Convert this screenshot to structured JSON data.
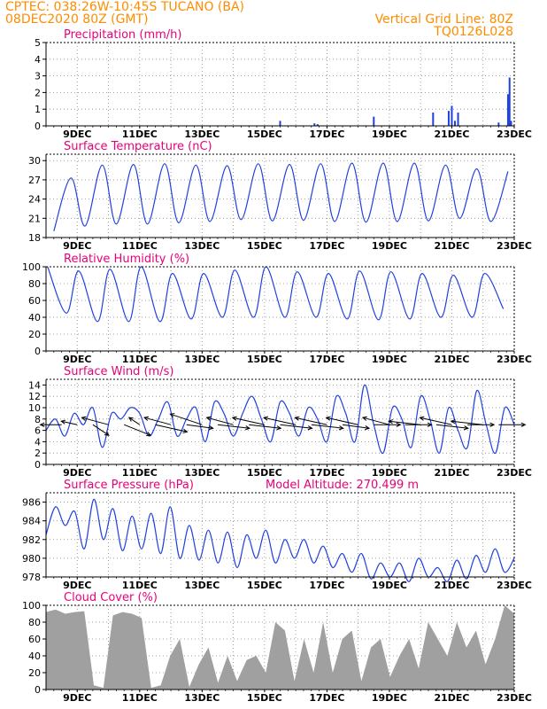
{
  "header": {
    "left_line1": "CPTEC:  038:26W-10:45S  TUCANO (BA)",
    "left_line2": "08DEC2020 80Z (GMT)",
    "right_line1": "Vertical Grid Line: 80Z",
    "right_line2": "TQ0126L028"
  },
  "colors": {
    "title": "#e8007a",
    "header": "#ff8c00",
    "line": "#2040e0",
    "wind_vector": "#000000",
    "cloud_fill": "#a0a0a0",
    "grid": "#888888"
  },
  "chart_data": [
    {
      "id": "precip",
      "type": "bar",
      "title": "Precipitation (mm/h)",
      "ylim": [
        0,
        5
      ],
      "yticks": [
        0,
        1,
        2,
        3,
        4,
        5
      ],
      "xlim": [
        8,
        23
      ],
      "xticks": [
        {
          "x": 9,
          "label": "9DEC"
        },
        {
          "x": 11,
          "label": "11DEC"
        },
        {
          "x": 13,
          "label": "13DEC"
        },
        {
          "x": 15,
          "label": "15DEC"
        },
        {
          "x": 17,
          "label": "17DEC"
        },
        {
          "x": 19,
          "label": "19DEC"
        },
        {
          "x": 21,
          "label": "21DEC"
        },
        {
          "x": 23,
          "label": "23DEC"
        }
      ],
      "x": [
        15.5,
        16.6,
        16.7,
        18.5,
        20.4,
        20.9,
        21.0,
        21.1,
        21.2,
        22.5,
        22.8,
        22.85,
        22.9
      ],
      "values": [
        0.3,
        0.15,
        0.1,
        0.55,
        0.8,
        0.9,
        1.2,
        0.3,
        0.8,
        0.2,
        1.9,
        2.9,
        0.3
      ]
    },
    {
      "id": "temp",
      "type": "line",
      "title": "Surface Temperature (nC)",
      "ylim": [
        18,
        31
      ],
      "yticks": [
        18,
        21,
        24,
        27,
        30
      ],
      "xlim": [
        8,
        23
      ],
      "xticks": [
        {
          "x": 9,
          "label": "9DEC"
        },
        {
          "x": 11,
          "label": "11DEC"
        },
        {
          "x": 13,
          "label": "13DEC"
        },
        {
          "x": 15,
          "label": "15DEC"
        },
        {
          "x": 17,
          "label": "17DEC"
        },
        {
          "x": 19,
          "label": "19DEC"
        },
        {
          "x": 21,
          "label": "21DEC"
        },
        {
          "x": 23,
          "label": "23DEC"
        }
      ],
      "series": [
        {
          "mins": [
            19.0,
            19.8,
            20.1,
            20.1,
            20.3,
            20.5,
            20.8,
            20.6,
            20.7,
            20.5,
            20.4,
            20.5,
            20.6,
            21.0,
            20.5,
            20.6
          ],
          "maxs": [
            27.3,
            29.3,
            29.4,
            29.5,
            29.3,
            29.2,
            29.5,
            29.4,
            29.5,
            29.6,
            29.6,
            29.6,
            29.3,
            28.7,
            28.3
          ]
        }
      ]
    },
    {
      "id": "rh",
      "type": "line",
      "title": "Relative Humidity (%)",
      "ylim": [
        0,
        100
      ],
      "yticks": [
        0,
        20,
        40,
        60,
        80,
        100
      ],
      "xlim": [
        8,
        23
      ],
      "xticks": [
        {
          "x": 9,
          "label": "9DEC"
        },
        {
          "x": 11,
          "label": "11DEC"
        },
        {
          "x": 13,
          "label": "13DEC"
        },
        {
          "x": 15,
          "label": "15DEC"
        },
        {
          "x": 17,
          "label": "17DEC"
        },
        {
          "x": 19,
          "label": "19DEC"
        },
        {
          "x": 21,
          "label": "21DEC"
        },
        {
          "x": 23,
          "label": "23DEC"
        }
      ],
      "series": [
        {
          "maxs": [
            100,
            95,
            97,
            100,
            92,
            92,
            96,
            100,
            94,
            92,
            95,
            94,
            92,
            90,
            92,
            86
          ],
          "mins": [
            45,
            35,
            35,
            35,
            38,
            40,
            40,
            40,
            40,
            38,
            37,
            38,
            40,
            40,
            50
          ]
        }
      ]
    },
    {
      "id": "wind",
      "type": "line",
      "title": "Surface Wind (m/s)",
      "ylim": [
        0,
        15
      ],
      "yticks": [
        0,
        2,
        4,
        6,
        8,
        10,
        12,
        14
      ],
      "xlim": [
        8,
        23
      ],
      "xticks": [
        {
          "x": 9,
          "label": "9DEC"
        },
        {
          "x": 11,
          "label": "11DEC"
        },
        {
          "x": 13,
          "label": "13DEC"
        },
        {
          "x": 15,
          "label": "15DEC"
        },
        {
          "x": 17,
          "label": "17DEC"
        },
        {
          "x": 19,
          "label": "19DEC"
        },
        {
          "x": 21,
          "label": "21DEC"
        },
        {
          "x": 23,
          "label": "23DEC"
        }
      ],
      "series": [
        {
          "speed": [
            6,
            8,
            5,
            9,
            7,
            10,
            3,
            9,
            8,
            10,
            9,
            5,
            8,
            11,
            5,
            8,
            10,
            4,
            11,
            9,
            5,
            9,
            12,
            8,
            4,
            11,
            9,
            5,
            10,
            8,
            4,
            12,
            9,
            4,
            14,
            7,
            2,
            10,
            8,
            3,
            12,
            8,
            2,
            10,
            6,
            3,
            13,
            7,
            2,
            10,
            7
          ]
        }
      ],
      "vectors": {
        "x": [
          8.5,
          9.0,
          9.5,
          10.0,
          10.5,
          11.0,
          11.5,
          12.0,
          12.5,
          13.0,
          13.5,
          14.0,
          14.5,
          15.0,
          15.5,
          16.0,
          16.5,
          17.0,
          17.5,
          18.0,
          18.5,
          19.0,
          19.5,
          20.0,
          20.5,
          21.0,
          21.5,
          22.0,
          22.5
        ],
        "u": [
          -4,
          -3,
          3,
          -5,
          5,
          -2,
          6,
          -5,
          5,
          -6,
          6,
          -5,
          6,
          -6,
          6,
          -6,
          6,
          -6,
          5,
          -6,
          5,
          -5,
          5,
          -6,
          6,
          -6,
          5,
          -6,
          5
        ],
        "v": [
          0,
          1,
          -3,
          2,
          -3,
          2,
          -2,
          2,
          -1,
          3,
          -1,
          2,
          -1,
          2,
          -1,
          2,
          -1,
          2,
          -1,
          2,
          0,
          2,
          0,
          1,
          -1,
          2,
          0,
          1,
          0
        ]
      }
    },
    {
      "id": "pressure",
      "type": "line",
      "title": "Surface Pressure (hPa)",
      "subtitle": "Model Altitude: 270.499  m",
      "ylim": [
        978,
        987
      ],
      "yticks": [
        978,
        980,
        982,
        984,
        986
      ],
      "xlim": [
        8,
        23
      ],
      "xticks": [
        {
          "x": 9,
          "label": "9DEC"
        },
        {
          "x": 11,
          "label": "11DEC"
        },
        {
          "x": 13,
          "label": "13DEC"
        },
        {
          "x": 15,
          "label": "15DEC"
        },
        {
          "x": 17,
          "label": "17DEC"
        },
        {
          "x": 19,
          "label": "19DEC"
        },
        {
          "x": 21,
          "label": "21DEC"
        },
        {
          "x": 23,
          "label": "23DEC"
        }
      ],
      "series": [
        {
          "values": [
            982.5,
            985.5,
            983.5,
            985.0,
            981.0,
            986.3,
            982.0,
            985.3,
            980.8,
            984.5,
            981.0,
            984.8,
            980.5,
            985.5,
            980.0,
            983.5,
            979.8,
            983.0,
            979.5,
            982.8,
            979.0,
            982.5,
            980.0,
            983.0,
            979.5,
            982.0,
            980.0,
            982.0,
            979.5,
            981.3,
            979.0,
            980.5,
            978.5,
            980.5,
            977.8,
            979.5,
            978.0,
            979.5,
            977.5,
            980.0,
            978.0,
            979.0,
            977.5,
            979.8,
            977.8,
            980.3,
            978.5,
            981.0,
            978.5,
            980.0
          ]
        }
      ]
    },
    {
      "id": "cloud",
      "type": "area",
      "title": "Cloud Cover (%)",
      "ylim": [
        0,
        100
      ],
      "yticks": [
        0,
        20,
        40,
        60,
        80,
        100
      ],
      "xlim": [
        8,
        23
      ],
      "xticks": [
        {
          "x": 9,
          "label": "9DEC"
        },
        {
          "x": 11,
          "label": "11DEC"
        },
        {
          "x": 13,
          "label": "13DEC"
        },
        {
          "x": 15,
          "label": "15DEC"
        },
        {
          "x": 17,
          "label": "17DEC"
        },
        {
          "x": 19,
          "label": "19DEC"
        },
        {
          "x": 21,
          "label": "21DEC"
        },
        {
          "x": 23,
          "label": "23DEC"
        }
      ],
      "series": [
        {
          "values": [
            92,
            95,
            90,
            92,
            93,
            5,
            2,
            88,
            92,
            90,
            85,
            2,
            5,
            40,
            60,
            3,
            30,
            50,
            8,
            40,
            10,
            35,
            40,
            20,
            80,
            70,
            10,
            60,
            20,
            80,
            20,
            60,
            70,
            10,
            50,
            60,
            15,
            40,
            60,
            25,
            80,
            60,
            40,
            80,
            50,
            70,
            30,
            60,
            100,
            90
          ]
        }
      ]
    }
  ]
}
